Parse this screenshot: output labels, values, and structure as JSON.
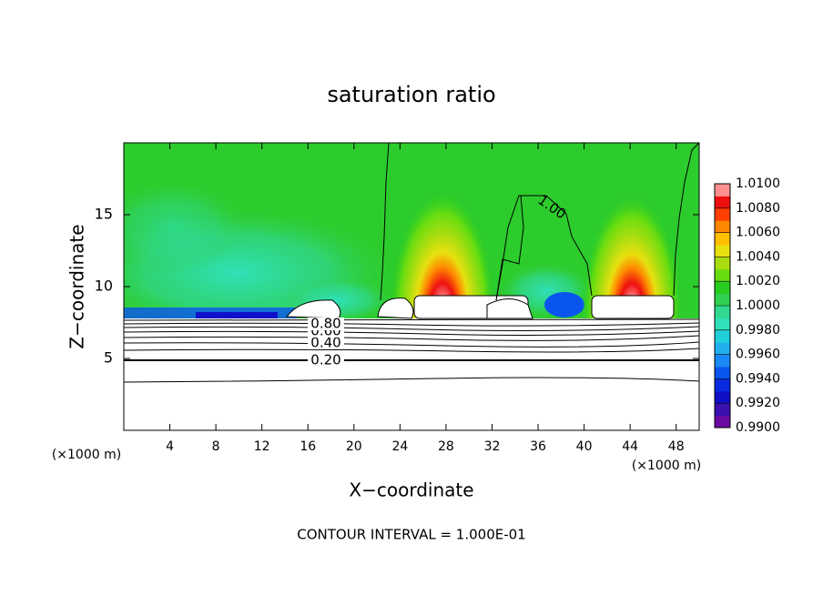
{
  "chart_data": {
    "type": "contour",
    "title": "saturation ratio",
    "x_label": "X−coordinate",
    "y_label": "Z−coordinate",
    "x_unit": "(×1000 m)",
    "footer": "CONTOUR INTERVAL = 1.000E-01",
    "xlim": [
      0,
      50
    ],
    "xticks": [
      4,
      8,
      12,
      16,
      20,
      24,
      28,
      32,
      36,
      40,
      44,
      48
    ],
    "ylim": [
      0,
      20
    ],
    "yticks": [
      5,
      10,
      15
    ],
    "contour_labels": [
      "0.20",
      "0.40",
      "0.60",
      "0.80",
      "1.00"
    ],
    "colorbar": {
      "lim": [
        0.99,
        1.01
      ],
      "ticks": [
        {
          "value": 0.99,
          "label": "0.9900"
        },
        {
          "value": 0.992,
          "label": "0.9920"
        },
        {
          "value": 0.994,
          "label": "0.9940"
        },
        {
          "value": 0.996,
          "label": "0.9960"
        },
        {
          "value": 0.998,
          "label": "0.9980"
        },
        {
          "value": 1.0,
          "label": "1.0000"
        },
        {
          "value": 1.002,
          "label": "1.0020"
        },
        {
          "value": 1.004,
          "label": "1.0040"
        },
        {
          "value": 1.006,
          "label": "1.0060"
        },
        {
          "value": 1.008,
          "label": "1.0080"
        },
        {
          "value": 1.01,
          "label": "1.0100"
        }
      ],
      "colors": [
        "#6a0aa0",
        "#3a10b0",
        "#1010c8",
        "#0a2ae0",
        "#0a55f0",
        "#1a88f5",
        "#20b0f0",
        "#20d0d8",
        "#30e0b8",
        "#30d890",
        "#30d050",
        "#28cc20",
        "#66dd10",
        "#aadd10",
        "#e8e010",
        "#ffc000",
        "#ff8800",
        "#ff4000",
        "#ee1010",
        "#ff9090"
      ]
    }
  }
}
